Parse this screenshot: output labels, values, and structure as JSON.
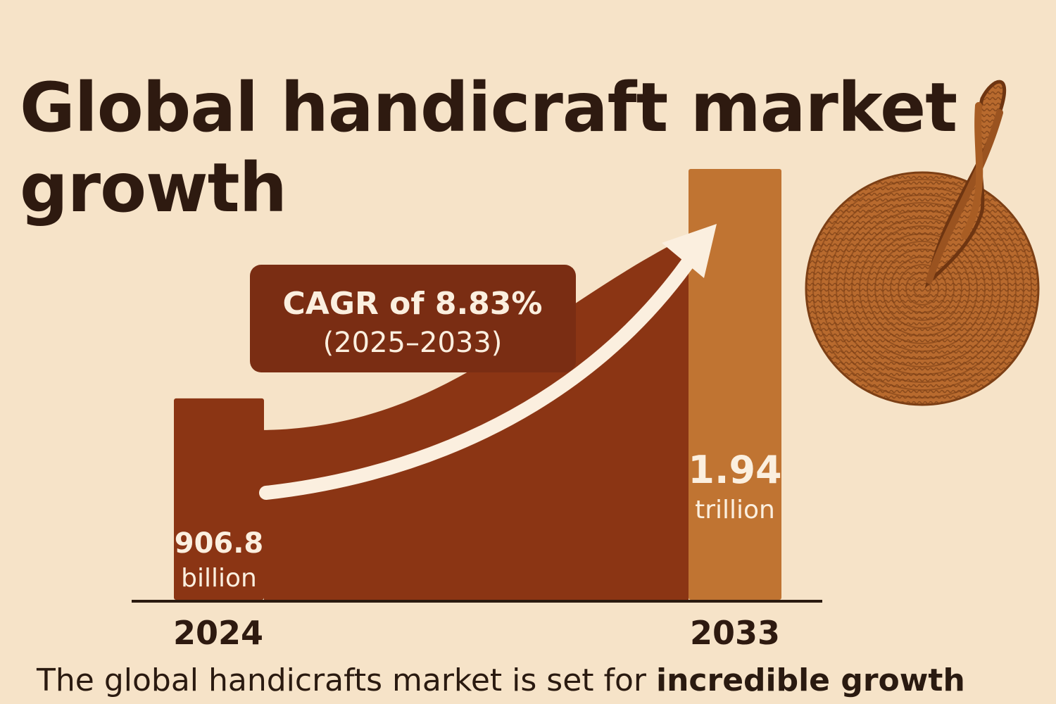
{
  "title": "Global handicraft market growth",
  "caption": {
    "text": "The global handicrafts market is set for ",
    "emphasis": "incredible growth"
  },
  "chart_data": {
    "type": "bar",
    "title": "Global handicraft market growth",
    "categories": [
      "2024",
      "2033"
    ],
    "values": [
      906.8,
      1940
    ],
    "unit": "billion",
    "data_labels": [
      {
        "value": "906.8",
        "unit": "billion"
      },
      {
        "value": "1.94",
        "unit": "trillion"
      }
    ],
    "annotation": {
      "line1": "CAGR of 8.83%",
      "line2": "(2025–2033)"
    },
    "ylim": [
      0,
      1940
    ],
    "grid": false,
    "legend": "none"
  },
  "colors": {
    "background": "#f6e3c8",
    "bar_2024": "#8b3514",
    "bar_2033": "#c07432",
    "area": "#8b3514",
    "callout": "#7a2d13",
    "arrow": "#fbefdf",
    "text_dark": "#2e1a10",
    "label_light": "#fbefdf"
  },
  "decoration": {
    "icon": "woven-basket-icon"
  }
}
